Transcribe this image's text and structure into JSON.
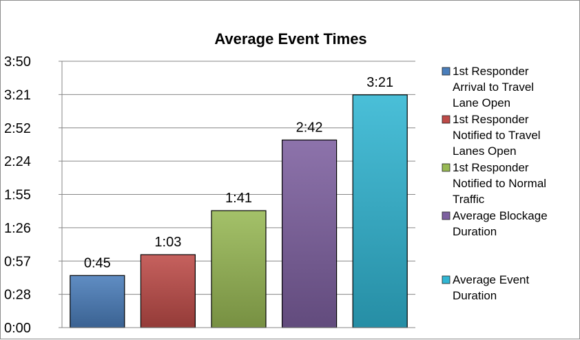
{
  "chart_data": {
    "type": "bar",
    "title": "Average Event Times",
    "xlabel": "",
    "ylabel": "",
    "ylim": [
      0,
      230
    ],
    "y_unit": "seconds",
    "y_ticks": [
      {
        "value": 0,
        "label": "0:00"
      },
      {
        "value": 28.75,
        "label": "0:28"
      },
      {
        "value": 57.5,
        "label": "0:57"
      },
      {
        "value": 86.25,
        "label": "1:26"
      },
      {
        "value": 115,
        "label": "1:55"
      },
      {
        "value": 143.75,
        "label": "2:24"
      },
      {
        "value": 172.5,
        "label": "2:52"
      },
      {
        "value": 201.25,
        "label": "3:21"
      },
      {
        "value": 230,
        "label": "3:50"
      }
    ],
    "grid": true,
    "legend_position": "right",
    "series": [
      {
        "label_lines": [
          "1st Responder",
          "Arrival to Travel",
          "Lane Open"
        ],
        "value": 45,
        "data_label": "0:45",
        "color": "#4a7ebb"
      },
      {
        "label_lines": [
          "1st Responder",
          "Notified to Travel",
          "Lanes Open"
        ],
        "value": 63,
        "data_label": "1:03",
        "color": "#be4b48"
      },
      {
        "label_lines": [
          "1st Responder",
          "Notified to Normal",
          "Traffic"
        ],
        "value": 101,
        "data_label": "1:41",
        "color": "#98b954"
      },
      {
        "label_lines": [
          "Average Blockage",
          "Duration"
        ],
        "value": 162,
        "data_label": "2:42",
        "color": "#7d60a0"
      },
      {
        "label_lines": [
          "Average Event",
          "Duration"
        ],
        "value": 201,
        "data_label": "3:21",
        "color": "#31b6d3"
      }
    ]
  }
}
